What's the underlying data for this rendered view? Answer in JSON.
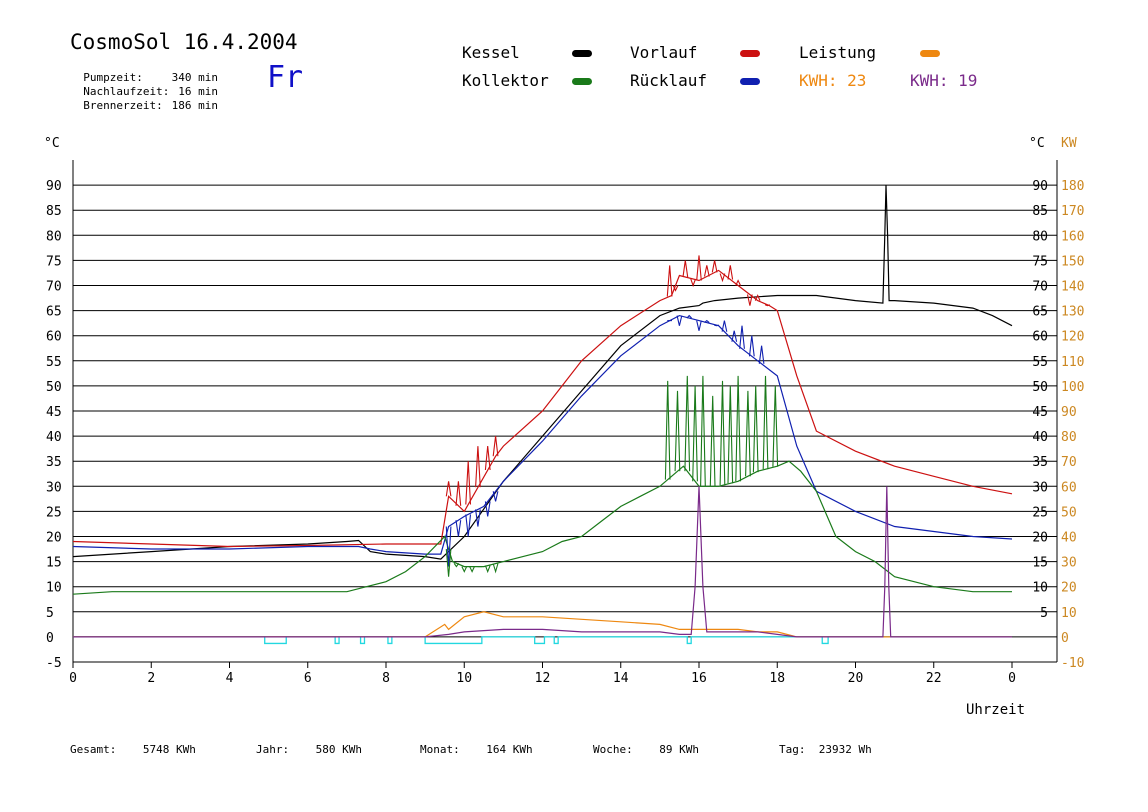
{
  "header": {
    "title": "CosmoSol 16.4.2004",
    "day": "Fr",
    "stats": [
      {
        "label": "Pumpzeit:",
        "value": "340 min"
      },
      {
        "label": "Nachlaufzeit:",
        "value": "16 min"
      },
      {
        "label": "Brennerzeit:",
        "value": "186 min"
      }
    ]
  },
  "legend": {
    "kessel": "Kessel",
    "kollektor": "Kollektor",
    "vorlauf": "Vorlauf",
    "ruecklauf": "Rücklauf",
    "leistung": "Leistung",
    "kwh1_label": "KWH:",
    "kwh1_value": "23",
    "kwh2_label": "KWH:",
    "kwh2_value": "19"
  },
  "colors": {
    "kessel": "#000000",
    "kollektor": "#1a7a1a",
    "vorlauf": "#cc1111",
    "ruecklauf": "#1020b0",
    "leistung": "#ee8811",
    "kwh2": "#7a2a8a",
    "pump": "#22d8e0",
    "right_axis": "#cc8822"
  },
  "footer": {
    "gesamt_label": "Gesamt:",
    "gesamt_value": "5748 KWh",
    "jahr_label": "Jahr:",
    "jahr_value": "580 KWh",
    "monat_label": "Monat:",
    "monat_value": "164 KWh",
    "woche_label": "Woche:",
    "woche_value": "89 KWh",
    "tag_label": "Tag:",
    "tag_value": "23932 Wh"
  },
  "chart_data": {
    "type": "line",
    "xlabel": "Uhrzeit",
    "ylabel_left": "°C",
    "ylabel_right": "KW",
    "x_ticks": [
      "0",
      "2",
      "4",
      "6",
      "8",
      "10",
      "12",
      "14",
      "16",
      "18",
      "20",
      "22",
      "0"
    ],
    "xlim": [
      0,
      24
    ],
    "ylim_left": [
      -5,
      95
    ],
    "ylim_right": [
      -10,
      190
    ],
    "y_ticks_left": [
      "-5",
      "0",
      "5",
      "10",
      "15",
      "20",
      "25",
      "30",
      "35",
      "40",
      "45",
      "50",
      "55",
      "60",
      "65",
      "70",
      "75",
      "80",
      "85",
      "90"
    ],
    "y_ticks_right": [
      "-10",
      "0",
      "10",
      "20",
      "30",
      "40",
      "50",
      "60",
      "70",
      "80",
      "90",
      "100",
      "110",
      "120",
      "130",
      "140",
      "150",
      "160",
      "170",
      "180"
    ],
    "grid": true,
    "series": [
      {
        "name": "Kessel",
        "axis": "left",
        "x": [
          0,
          2,
          4,
          6,
          7,
          7.3,
          7.6,
          8,
          9,
          9.4,
          9.6,
          10,
          11,
          12,
          13,
          14,
          15,
          15.5,
          16,
          16.1,
          16.4,
          17,
          18,
          19,
          20,
          20.7,
          20.75,
          20.78,
          20.82,
          20.86,
          20.9,
          21,
          22,
          23,
          23.5,
          24
        ],
        "y": [
          16,
          17,
          18,
          18.5,
          19,
          19.2,
          17,
          16.5,
          16,
          15.5,
          17,
          20,
          31,
          40,
          49,
          58,
          64,
          65.5,
          66,
          66.5,
          67,
          67.5,
          68,
          68,
          67,
          66.5,
          80,
          90,
          80,
          67,
          67,
          67,
          66.5,
          65.5,
          64,
          62
        ]
      },
      {
        "name": "Vorlauf",
        "axis": "left",
        "x": [
          0,
          2,
          4,
          6,
          8,
          9,
          9.4,
          9.6,
          10,
          10.8,
          11,
          12,
          13,
          14,
          15,
          15.3,
          15.5,
          16,
          16.5,
          17,
          17.5,
          17.8,
          18,
          18.5,
          19,
          20,
          21,
          22,
          23,
          24
        ],
        "y": [
          19,
          18.5,
          18,
          18.2,
          18.5,
          18.5,
          18.5,
          28,
          25,
          36,
          38,
          45,
          55,
          62,
          67,
          68,
          72,
          71,
          73,
          70,
          67,
          66,
          65,
          52,
          41,
          37,
          34,
          32,
          30,
          28.5
        ]
      },
      {
        "name": "Rücklauf",
        "axis": "left",
        "x": [
          0,
          2,
          4,
          6,
          7.3,
          7.6,
          8,
          9,
          9.4,
          9.6,
          10,
          10.5,
          11,
          12,
          13,
          14,
          15,
          15.5,
          16,
          16.5,
          17,
          17.5,
          18,
          18.5,
          19,
          20,
          21,
          22,
          23,
          24
        ],
        "y": [
          18,
          17.5,
          17.5,
          18,
          18,
          17.5,
          17,
          16.5,
          16.5,
          22,
          24,
          26,
          31,
          39,
          48,
          56,
          62,
          64,
          63,
          62,
          58,
          55,
          52,
          38,
          29,
          25,
          22,
          21,
          20,
          19.5
        ]
      },
      {
        "name": "Kollektor",
        "axis": "left",
        "x": [
          0,
          1,
          2,
          3,
          4,
          5,
          6,
          7,
          7.5,
          8,
          8.5,
          9,
          9.5,
          9.7,
          10,
          10.5,
          11,
          11.5,
          12,
          12.5,
          13,
          13.5,
          14,
          14.5,
          15,
          15.3,
          15.6,
          16,
          16.5,
          17,
          17.5,
          18,
          18.3,
          18.6,
          19,
          19.5,
          20,
          20.5,
          21,
          22,
          23,
          24
        ],
        "y": [
          8.5,
          9,
          9,
          9,
          9,
          9,
          9,
          9,
          10,
          11,
          13,
          16,
          20,
          15,
          14,
          14,
          15,
          16,
          17,
          19,
          20,
          23,
          26,
          28,
          30,
          32,
          34,
          30,
          30,
          31,
          33,
          34,
          35,
          33,
          29,
          20,
          17,
          15,
          12,
          10,
          9,
          9
        ]
      },
      {
        "name": "Leistung",
        "axis": "right",
        "x": [
          0,
          9,
          9.5,
          9.6,
          10,
          10.5,
          11,
          12,
          13,
          14,
          15,
          15.5,
          16,
          16.5,
          17,
          17.5,
          18,
          18.5,
          19,
          24
        ],
        "y": [
          0,
          0,
          5,
          3,
          8,
          10,
          8,
          8,
          7,
          6,
          5,
          3,
          3,
          3,
          3,
          2,
          2,
          0,
          0,
          0
        ]
      },
      {
        "name": "KWH2",
        "axis": "right",
        "x": [
          0,
          9,
          9.6,
          10,
          11,
          12,
          13,
          14,
          15,
          15.5,
          15.8,
          15.9,
          16,
          16.1,
          16.2,
          16.5,
          17,
          17.5,
          18,
          18.5,
          20.7,
          20.75,
          20.8,
          20.85,
          20.9,
          21,
          24
        ],
        "y": [
          0,
          0,
          1,
          2,
          3,
          3,
          2,
          2,
          2,
          1,
          1,
          20,
          60,
          20,
          2,
          2,
          2,
          2,
          1,
          0,
          0,
          20,
          60,
          20,
          0,
          0,
          0
        ]
      }
    ],
    "spikes": [
      {
        "name": "Vorlauf",
        "axis": "left",
        "x": [
          9.6,
          9.85,
          10.1,
          10.35,
          10.6,
          10.8,
          15.25,
          15.4,
          15.65,
          15.85,
          16.0,
          16.2,
          16.4,
          16.6,
          16.8,
          17.0,
          17.3,
          17.5,
          17.75
        ],
        "y": [
          31,
          31,
          35,
          38,
          38,
          40,
          74,
          69,
          75,
          70,
          76,
          74,
          75,
          71,
          74,
          71,
          66,
          68,
          66
        ]
      },
      {
        "name": "Rücklauf",
        "axis": "left",
        "x": [
          9.6,
          9.85,
          10.1,
          10.35,
          10.6,
          10.8,
          15.25,
          15.5,
          15.75,
          16.0,
          16.2,
          16.45,
          16.65,
          16.9,
          17.1,
          17.35,
          17.6
        ],
        "y": [
          14,
          20,
          20,
          22,
          24,
          27,
          63,
          62,
          64,
          61,
          63,
          62,
          63,
          61,
          62,
          60,
          58
        ]
      },
      {
        "name": "Kollektor",
        "axis": "left",
        "x": [
          9.6,
          9.8,
          10.0,
          10.2,
          10.4,
          10.6,
          10.8,
          15.2,
          15.45,
          15.7,
          15.9,
          16.1,
          16.35,
          16.6,
          16.8,
          17.0,
          17.25,
          17.45,
          17.7,
          17.95
        ],
        "y": [
          12,
          14,
          13,
          13,
          14,
          13,
          13,
          51,
          49,
          52,
          50,
          52,
          48,
          51,
          50,
          52,
          49,
          50,
          52,
          50
        ]
      }
    ],
    "pump_intervals": [
      [
        4.9,
        5.45
      ],
      [
        6.7,
        6.8
      ],
      [
        7.35,
        7.45
      ],
      [
        8.05,
        8.15
      ],
      [
        9.0,
        10.45
      ],
      [
        11.8,
        12.05
      ],
      [
        12.3,
        12.4
      ],
      [
        15.7,
        15.8
      ],
      [
        19.15,
        19.3
      ]
    ]
  }
}
